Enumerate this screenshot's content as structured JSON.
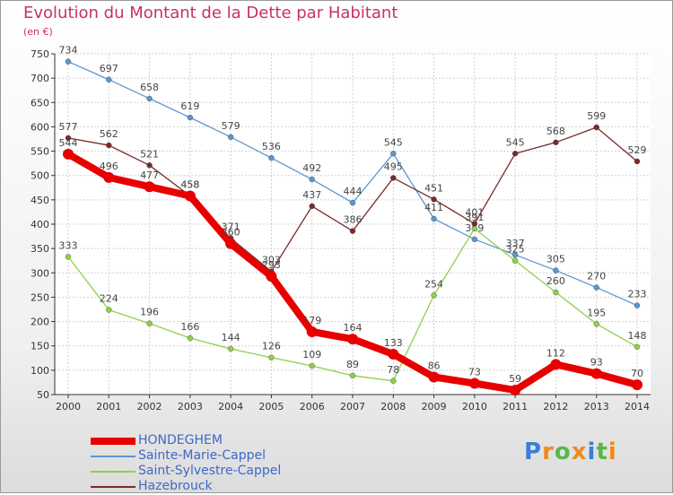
{
  "header": {
    "title": "Evolution du Montant de la Dette par Habitant",
    "subtitle": "(en €)"
  },
  "colors": {
    "title": "#c8306a",
    "legend_text": "#3d69c9",
    "axis": "#333333",
    "grid": "#d0d0d0"
  },
  "chart_data": {
    "type": "line",
    "title": "Evolution du Montant de la Dette par Habitant",
    "subtitle": "(en €)",
    "x": [
      "2000",
      "2001",
      "2002",
      "2003",
      "2004",
      "2005",
      "2006",
      "2007",
      "2008",
      "2009",
      "2010",
      "2011",
      "2012",
      "2013",
      "2014"
    ],
    "ylim": [
      50,
      750
    ],
    "yticks": [
      50,
      100,
      150,
      200,
      250,
      300,
      350,
      400,
      450,
      500,
      550,
      600,
      650,
      700,
      750
    ],
    "grid": true,
    "legend_position": "bottom-left",
    "series": [
      {
        "name": "HONDEGHEM",
        "color": "#e80000",
        "style": "thick",
        "values": [
          544,
          496,
          477,
          458,
          360,
          293,
          179,
          164,
          133,
          86,
          73,
          59,
          112,
          93,
          70
        ],
        "labels": [
          "544",
          "496",
          "477",
          "458",
          "360",
          "293",
          "179",
          "164",
          "133",
          "86",
          "73",
          "59",
          "112",
          "93",
          "70"
        ]
      },
      {
        "name": "Sainte-Marie-Cappel",
        "color": "#5b96d0",
        "style": "thin",
        "values": [
          734,
          697,
          658,
          619,
          579,
          536,
          492,
          444,
          545,
          411,
          369,
          337,
          305,
          270,
          233
        ],
        "labels": [
          "734",
          "697",
          "658",
          "619",
          "579",
          "536",
          "492",
          "444",
          "545",
          "411",
          "369",
          "337",
          "305",
          "270",
          "233"
        ]
      },
      {
        "name": "Saint-Sylvestre-Cappel",
        "color": "#8fd04b",
        "style": "thin",
        "values": [
          333,
          224,
          196,
          166,
          144,
          126,
          109,
          89,
          78,
          254,
          391,
          325,
          260,
          195,
          148
        ],
        "labels": [
          "333",
          "224",
          "196",
          "166",
          "144",
          "126",
          "109",
          "89",
          "78",
          "254",
          "391",
          "325",
          "260",
          "195",
          "148"
        ]
      },
      {
        "name": "Hazebrouck",
        "color": "#7a2a2a",
        "style": "thin",
        "values": [
          577,
          562,
          521,
          458,
          371,
          303,
          437,
          386,
          495,
          451,
          401,
          545,
          568,
          599,
          529
        ],
        "labels": [
          "577",
          "562",
          "521",
          "458",
          "371",
          "303",
          "437",
          "386",
          "495",
          "451",
          "401",
          "545",
          "568",
          "599",
          "529"
        ]
      }
    ]
  },
  "logo": {
    "text": "Proxiti",
    "colors": [
      "#3a7fd5",
      "#f08a1c",
      "#58b84a",
      "#f08a1c",
      "#3a7fd5",
      "#58b84a",
      "#f08a1c"
    ]
  }
}
